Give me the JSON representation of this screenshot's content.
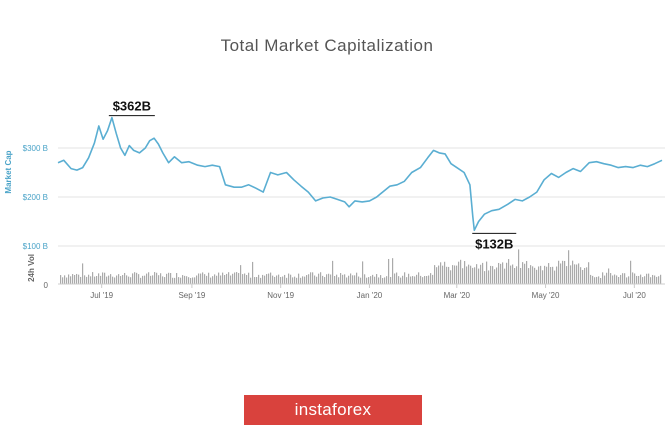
{
  "chart_data": {
    "type": "line",
    "title": "Total Market Capitalization",
    "ylabel": "Market Cap",
    "ylabel2": "24h Vol",
    "y_ticks": [
      "$300 B",
      "$200 B",
      "$100 B"
    ],
    "y_tick_values": [
      300,
      200,
      100
    ],
    "vol_tick": "0",
    "ylim": [
      100,
      362
    ],
    "x_ticks": [
      "Jul '19",
      "Sep '19",
      "Nov '19",
      "Jan '20",
      "Mar '20",
      "May '20",
      "Jul '20"
    ],
    "x_tick_dates": [
      "2019-07-01",
      "2019-09-01",
      "2019-11-01",
      "2020-01-01",
      "2020-03-01",
      "2020-05-01",
      "2020-07-01"
    ],
    "x_range": [
      "2019-06-01",
      "2020-07-20"
    ],
    "grid": "horizontal",
    "series": [
      {
        "values": [
          [
            "2019-06-01",
            270
          ],
          [
            "2019-06-05",
            275
          ],
          [
            "2019-06-10",
            258
          ],
          [
            "2019-06-14",
            255
          ],
          [
            "2019-06-18",
            260
          ],
          [
            "2019-06-22",
            280
          ],
          [
            "2019-06-26",
            310
          ],
          [
            "2019-06-29",
            345
          ],
          [
            "2019-07-02",
            318
          ],
          [
            "2019-07-05",
            335
          ],
          [
            "2019-07-08",
            362
          ],
          [
            "2019-07-11",
            330
          ],
          [
            "2019-07-14",
            300
          ],
          [
            "2019-07-17",
            285
          ],
          [
            "2019-07-20",
            305
          ],
          [
            "2019-07-23",
            295
          ],
          [
            "2019-07-27",
            290
          ],
          [
            "2019-07-31",
            300
          ],
          [
            "2019-08-03",
            315
          ],
          [
            "2019-08-06",
            320
          ],
          [
            "2019-08-09",
            308
          ],
          [
            "2019-08-12",
            290
          ],
          [
            "2019-08-16",
            270
          ],
          [
            "2019-08-20",
            282
          ],
          [
            "2019-08-25",
            270
          ],
          [
            "2019-08-30",
            272
          ],
          [
            "2019-09-05",
            265
          ],
          [
            "2019-09-10",
            262
          ],
          [
            "2019-09-15",
            265
          ],
          [
            "2019-09-20",
            262
          ],
          [
            "2019-09-24",
            225
          ],
          [
            "2019-09-30",
            220
          ],
          [
            "2019-10-05",
            220
          ],
          [
            "2019-10-10",
            225
          ],
          [
            "2019-10-15",
            218
          ],
          [
            "2019-10-20",
            210
          ],
          [
            "2019-10-25",
            250
          ],
          [
            "2019-10-30",
            245
          ],
          [
            "2019-11-05",
            250
          ],
          [
            "2019-11-10",
            235
          ],
          [
            "2019-11-15",
            222
          ],
          [
            "2019-11-20",
            210
          ],
          [
            "2019-11-25",
            192
          ],
          [
            "2019-11-30",
            198
          ],
          [
            "2019-12-05",
            200
          ],
          [
            "2019-12-10",
            195
          ],
          [
            "2019-12-15",
            190
          ],
          [
            "2019-12-18",
            180
          ],
          [
            "2019-12-22",
            192
          ],
          [
            "2019-12-27",
            190
          ],
          [
            "2020-01-01",
            192
          ],
          [
            "2020-01-06",
            200
          ],
          [
            "2020-01-10",
            210
          ],
          [
            "2020-01-15",
            222
          ],
          [
            "2020-01-20",
            225
          ],
          [
            "2020-01-25",
            232
          ],
          [
            "2020-01-30",
            250
          ],
          [
            "2020-02-05",
            260
          ],
          [
            "2020-02-10",
            280
          ],
          [
            "2020-02-14",
            295
          ],
          [
            "2020-02-18",
            290
          ],
          [
            "2020-02-22",
            288
          ],
          [
            "2020-02-26",
            268
          ],
          [
            "2020-03-01",
            260
          ],
          [
            "2020-03-06",
            250
          ],
          [
            "2020-03-10",
            225
          ],
          [
            "2020-03-12",
            160
          ],
          [
            "2020-03-13",
            132
          ],
          [
            "2020-03-16",
            150
          ],
          [
            "2020-03-20",
            165
          ],
          [
            "2020-03-25",
            172
          ],
          [
            "2020-03-30",
            175
          ],
          [
            "2020-04-05",
            185
          ],
          [
            "2020-04-10",
            195
          ],
          [
            "2020-04-15",
            192
          ],
          [
            "2020-04-20",
            200
          ],
          [
            "2020-04-25",
            210
          ],
          [
            "2020-04-30",
            235
          ],
          [
            "2020-05-05",
            248
          ],
          [
            "2020-05-10",
            240
          ],
          [
            "2020-05-15",
            250
          ],
          [
            "2020-05-20",
            258
          ],
          [
            "2020-05-25",
            252
          ],
          [
            "2020-05-31",
            270
          ],
          [
            "2020-06-05",
            272
          ],
          [
            "2020-06-10",
            268
          ],
          [
            "2020-06-15",
            265
          ],
          [
            "2020-06-20",
            260
          ],
          [
            "2020-06-25",
            262
          ],
          [
            "2020-06-30",
            260
          ],
          [
            "2020-07-05",
            265
          ],
          [
            "2020-07-10",
            262
          ],
          [
            "2020-07-15",
            268
          ],
          [
            "2020-07-20",
            275
          ]
        ]
      }
    ],
    "annotations": [
      {
        "text": "$362B",
        "date": "2019-07-08",
        "value": 362
      },
      {
        "text": "$132B",
        "date": "2020-03-13",
        "value": 132
      }
    ]
  },
  "colors": {
    "line": "#5aaed2",
    "volume": "#aaaaaa",
    "grid": "#e3e3e3",
    "axis_label": "#4aa3c8",
    "logo_bg": "#d9423d"
  },
  "logo": {
    "text": "instaforex"
  }
}
